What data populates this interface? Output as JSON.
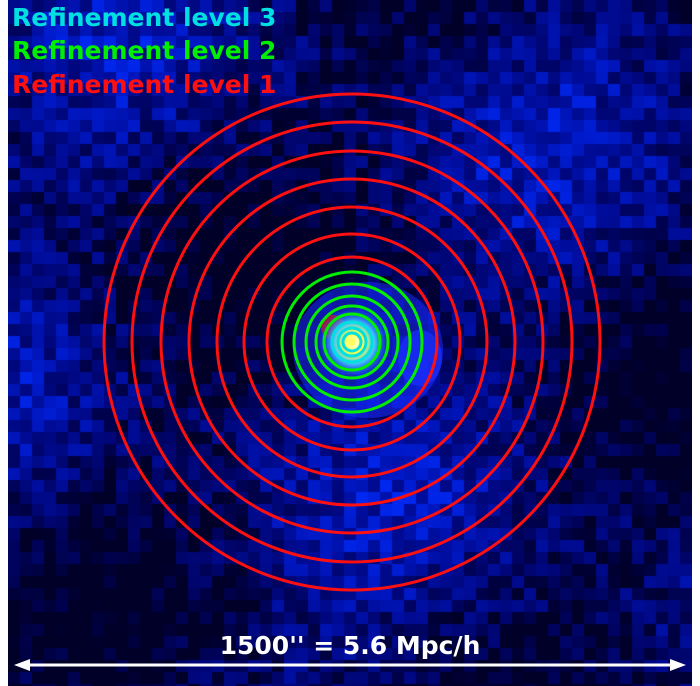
{
  "legend": [
    {
      "label": "Refinement level 3",
      "color": "#00e0e0"
    },
    {
      "label": "Refinement level 2",
      "color": "#00ee00"
    },
    {
      "label": "Refinement level 1",
      "color": "#ff1010"
    }
  ],
  "scalebar": {
    "label": "1500'' = 5.6 Mpc/h",
    "color": "#ffffff"
  },
  "background": {
    "colormap": "dark-blue",
    "base_color": "#000010"
  },
  "rings": {
    "level1": {
      "color": "#ff1010",
      "count": 8
    },
    "level2": {
      "color": "#00ee00",
      "count": 5
    },
    "level3": {
      "color": "#00e0e0",
      "count": 3
    }
  }
}
